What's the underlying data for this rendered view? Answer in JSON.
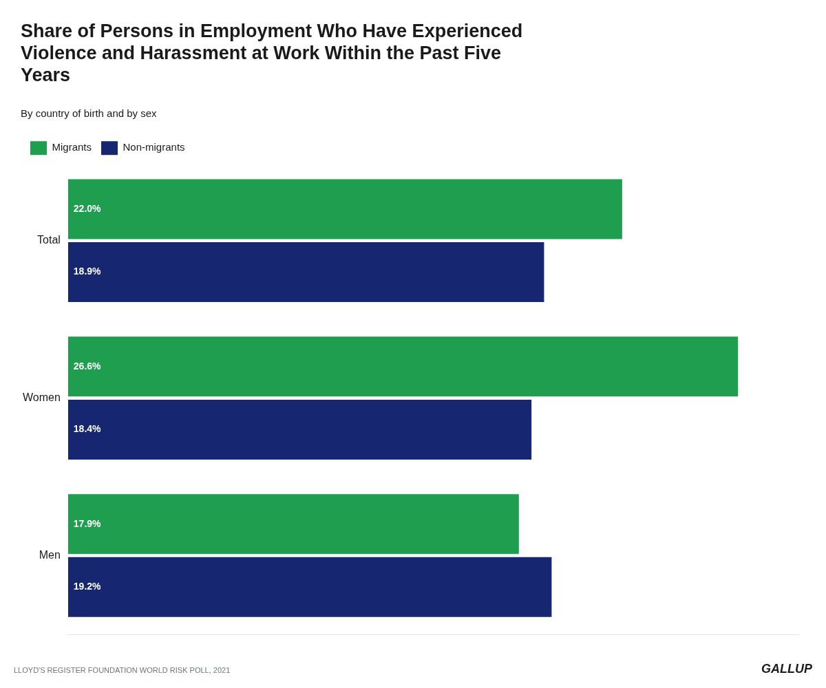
{
  "chart_data": {
    "type": "bar",
    "orientation": "horizontal",
    "title": "Share of Persons in Employment Who Have Experienced\nViolence and Harassment at Work Within the Past Five\nYears",
    "subtitle": "By country of birth and by sex",
    "categories": [
      "Total",
      "Women",
      "Men"
    ],
    "series": [
      {
        "name": "Migrants",
        "color": "#1f9e4f",
        "values": [
          22.0,
          26.6,
          17.9
        ],
        "value_labels": [
          "22.0%",
          "26.6%",
          "17.9%"
        ]
      },
      {
        "name": "Non-migrants",
        "color": "#162670",
        "values": [
          18.9,
          18.4,
          19.2
        ],
        "value_labels": [
          "18.9%",
          "18.4%",
          "19.2%"
        ]
      }
    ],
    "xlim": [
      0,
      29
    ],
    "grid": false,
    "legend": "top",
    "data_labels": true,
    "tick_labels": "y",
    "annotations": [
      "LLOYD'S REGISTER FOUNDATION WORLD RISK POLL, 2021",
      "GALLUP"
    ]
  }
}
